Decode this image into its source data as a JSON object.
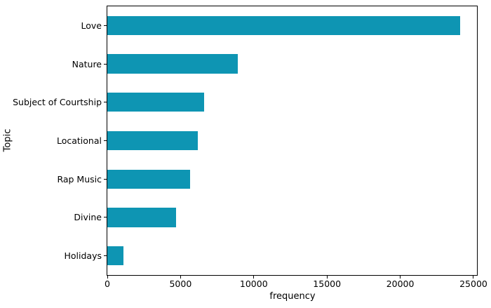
{
  "chart_data": {
    "type": "bar",
    "orientation": "horizontal",
    "title": "",
    "xlabel": "frequency",
    "ylabel": "Topic",
    "categories": [
      "Love",
      "Nature",
      "Subject of Courtship",
      "Locational",
      "Rap Music",
      "Divine",
      "Holidays"
    ],
    "values": [
      24100,
      8900,
      6600,
      6200,
      5650,
      4700,
      1100
    ],
    "xticks": [
      0,
      5000,
      10000,
      15000,
      20000,
      25000
    ],
    "xlim": [
      0,
      25240
    ],
    "bar_color": "#0e95b3",
    "bar_relative_height": 0.5,
    "grid": false,
    "legend": false,
    "background_color": "#ffffff",
    "spine_color": "#000000",
    "text_color": "#000000"
  }
}
